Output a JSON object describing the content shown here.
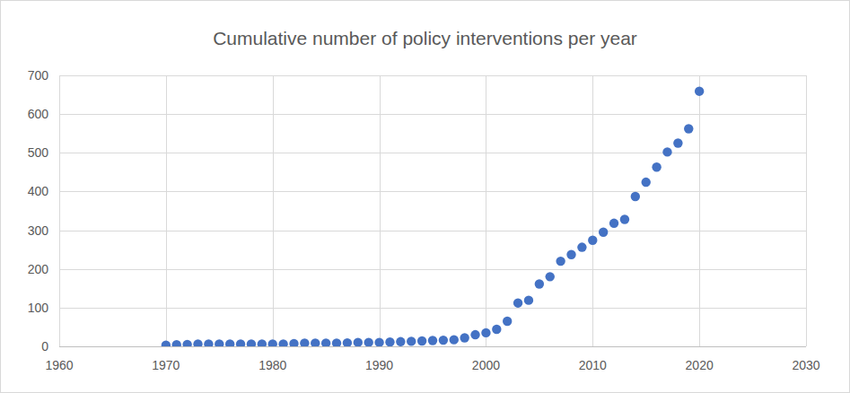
{
  "chart_data": {
    "type": "scatter",
    "title": "Cumulative number of policy interventions per year",
    "x": [
      1970,
      1971,
      1972,
      1973,
      1974,
      1975,
      1976,
      1977,
      1978,
      1979,
      1980,
      1981,
      1982,
      1983,
      1984,
      1985,
      1986,
      1987,
      1988,
      1989,
      1990,
      1991,
      1992,
      1993,
      1994,
      1995,
      1996,
      1997,
      1998,
      1999,
      2000,
      2001,
      2002,
      2003,
      2004,
      2005,
      2006,
      2007,
      2008,
      2009,
      2010,
      2011,
      2012,
      2013,
      2014,
      2015,
      2016,
      2017,
      2018,
      2019,
      2020
    ],
    "values": [
      3,
      4,
      5,
      6,
      6,
      6,
      6,
      6,
      6,
      6,
      6,
      6,
      7,
      8,
      8,
      8,
      8,
      9,
      10,
      10,
      10,
      11,
      12,
      13,
      14,
      15,
      16,
      17,
      22,
      30,
      35,
      44,
      65,
      112,
      119,
      161,
      180,
      220,
      237,
      256,
      274,
      295,
      318,
      328,
      387,
      424,
      463,
      502,
      525,
      562,
      659
    ],
    "color": "#4472c4",
    "marker": "circle",
    "xlim": [
      1960,
      2030
    ],
    "xticks": [
      1960,
      1970,
      1980,
      1990,
      2000,
      2010,
      2020,
      2030
    ],
    "ylim": [
      0,
      700
    ],
    "yticks": [
      0,
      100,
      200,
      300,
      400,
      500,
      600,
      700
    ],
    "grid": true
  }
}
